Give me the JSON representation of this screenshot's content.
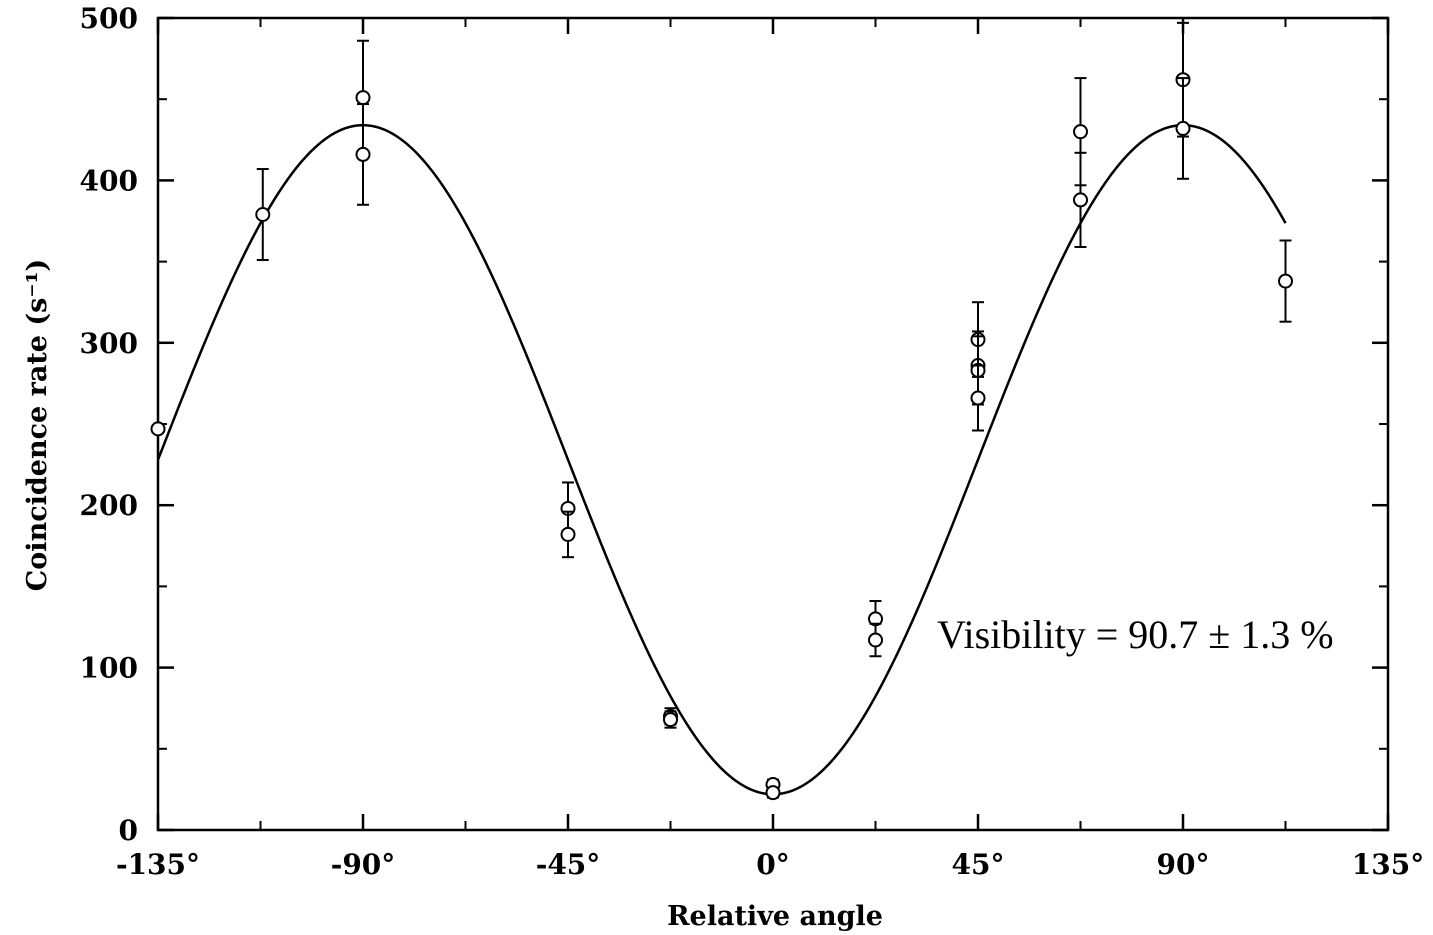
{
  "chart_data": {
    "type": "scatter",
    "xlabel": "Relative angle",
    "ylabel": "Coincidence rate (s⁻¹)",
    "xlim": [
      -135,
      135
    ],
    "ylim": [
      0,
      500
    ],
    "x_ticks": [
      -135,
      -90,
      -45,
      0,
      45,
      90,
      135
    ],
    "x_tick_labels": [
      "-135°",
      "-90°",
      "-45°",
      "0°",
      "45°",
      "90°",
      "135°"
    ],
    "y_ticks": [
      0,
      100,
      200,
      300,
      400,
      500
    ],
    "y_tick_labels": [
      "0",
      "100",
      "200",
      "300",
      "400",
      "500"
    ],
    "grid": false,
    "annotation": "Visibility = 90.7 ± 1.3 %",
    "series": [
      {
        "style": "open-circle-with-error-bars",
        "points": [
          {
            "x": -135,
            "y": 247,
            "err": 0
          },
          {
            "x": -112,
            "y": 379,
            "err": 28
          },
          {
            "x": -90,
            "y": 451,
            "err": 35
          },
          {
            "x": -90,
            "y": 416,
            "err": 31
          },
          {
            "x": -45,
            "y": 198,
            "err": 16
          },
          {
            "x": -45,
            "y": 182,
            "err": 14
          },
          {
            "x": -22.5,
            "y": 70,
            "err": 5
          },
          {
            "x": -22.5,
            "y": 68,
            "err": 5
          },
          {
            "x": 0,
            "y": 28,
            "err": 3
          },
          {
            "x": 0,
            "y": 23,
            "err": 3
          },
          {
            "x": 22.5,
            "y": 130,
            "err": 11
          },
          {
            "x": 22.5,
            "y": 117,
            "err": 10
          },
          {
            "x": 45,
            "y": 302,
            "err": 23
          },
          {
            "x": 45,
            "y": 286,
            "err": 21
          },
          {
            "x": 45,
            "y": 283,
            "err": 21
          },
          {
            "x": 45,
            "y": 266,
            "err": 20
          },
          {
            "x": 67.5,
            "y": 430,
            "err": 33
          },
          {
            "x": 67.5,
            "y": 388,
            "err": 29
          },
          {
            "x": 90,
            "y": 462,
            "err": 35
          },
          {
            "x": 90,
            "y": 432,
            "err": 31
          },
          {
            "x": 112.5,
            "y": 338,
            "err": 25
          }
        ]
      },
      {
        "style": "fit-curve",
        "model": "y = A - B*cos(2*x)",
        "A": 228,
        "B": 206,
        "x_range": [
          -135,
          112.5
        ]
      }
    ]
  }
}
